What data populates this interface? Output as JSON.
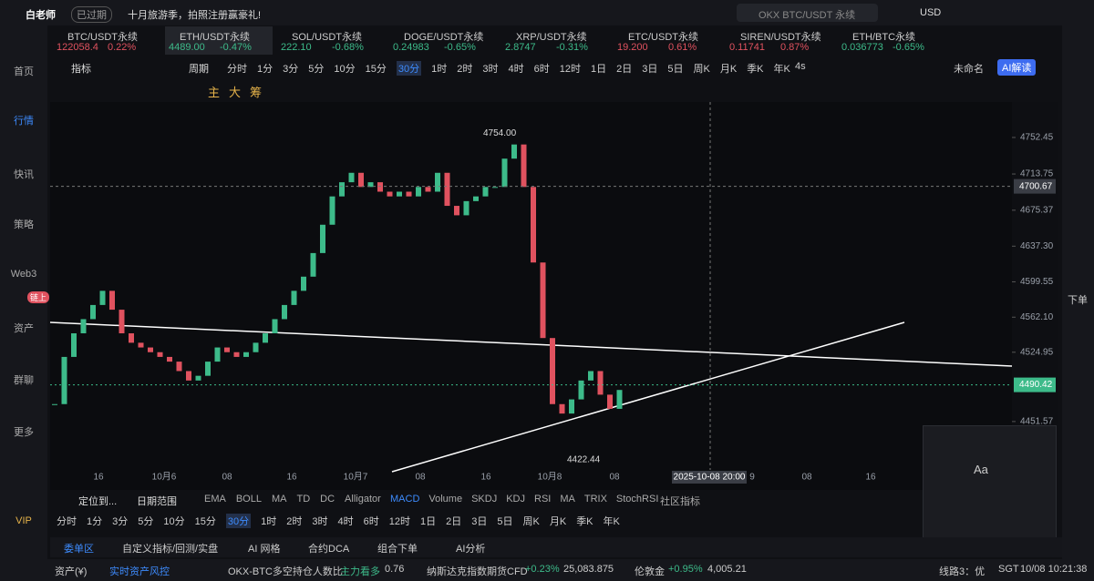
{
  "top_bar": {
    "brand": "白老师",
    "status": "已过期",
    "notice": "十月旅游季，拍照注册赢豪礼!",
    "search": "OKX BTC/USDT 永续",
    "currency": "USD"
  },
  "sidebar": [
    "首页",
    "行情",
    "快讯",
    "策略",
    "Web3",
    "资产",
    "群聊",
    "更多",
    "VIP"
  ],
  "sidebar_badge": "链上",
  "tickers": [
    {
      "name": "BTC/USDT永续",
      "price": "122058.4",
      "change": "0.22%"
    },
    {
      "name": "ETH/USDT永续",
      "price": "4489.00",
      "change": "-0.47%"
    },
    {
      "name": "SOL/USDT永续",
      "price": "222.10",
      "change": "-0.68%"
    },
    {
      "name": "DOGE/USDT永续",
      "price": "0.24983",
      "change": "-0.65%"
    },
    {
      "name": "XRP/USDT永续",
      "price": "2.8747",
      "change": "-0.31%"
    },
    {
      "name": "ETC/USDT永续",
      "price": "19.200",
      "change": "0.61%"
    },
    {
      "name": "SIREN/USDT永续",
      "price": "0.11741",
      "change": "0.87%"
    },
    {
      "name": "ETH/BTC永续",
      "price": "0.036773",
      "change": "-0.65%"
    }
  ],
  "toolbar": {
    "indicator": "指标",
    "period": "周期",
    "periods": [
      "分时",
      "1分",
      "3分",
      "5分",
      "10分",
      "15分",
      "30分",
      "1时",
      "2时",
      "3时",
      "4时",
      "6时",
      "12时",
      "1日",
      "2日",
      "3日",
      "5日",
      "周K",
      "月K",
      "季K",
      "年K"
    ],
    "active": "30分",
    "refresh": "4s",
    "layout": "未命名",
    "ai": "AI解读"
  },
  "draw_tools": [
    "主",
    "大",
    "筹"
  ],
  "price_chart": {
    "ylim": [
      4382,
      4790
    ],
    "yticks": [
      4752.45,
      4713.75,
      4675.37,
      {
        "value": 4637.3,
        "label": "4637.30"
      },
      4599.55,
      {
        "value": 4562.1,
        "label": "4562.10"
      },
      4524.95,
      4451.57
    ],
    "closes": [
      4470,
      4520,
      4545,
      4560,
      4575,
      4590,
      4570,
      4545,
      4535,
      4530,
      4525,
      4520,
      4515,
      4505,
      4495,
      4500,
      4515,
      4530,
      4525,
      4520,
      4525,
      4535,
      4545,
      4560,
      4575,
      4590,
      4605,
      4630,
      4660,
      4690,
      4705,
      4715,
      4700,
      4705,
      4695,
      4690,
      4695,
      4690,
      4700,
      4695,
      4715,
      4680,
      4670,
      4685,
      4690,
      4700,
      4700,
      4730,
      4745,
      4700,
      4620,
      4540,
      4470,
      4460,
      4475,
      4495,
      4505,
      4480,
      4465,
      4485
    ],
    "up_color": "#3dbb8a",
    "down_color": "#e0525f",
    "current_price": 4490.42,
    "crosshair_price": 4700.67,
    "high": {
      "value": 4754,
      "label": "4754.00"
    },
    "low": 4422.44,
    "x_labels": [
      "16",
      "10月6",
      "08",
      "16",
      "10月7",
      "08",
      "16",
      "10月8",
      "08",
      "2025-10-08 20:00",
      "9",
      "08",
      "16"
    ]
  },
  "indicator_bar": {
    "locate": "定位到...",
    "range": "日期范围",
    "main": [
      "EMA",
      "BOLL",
      "MA",
      "TD",
      "DC",
      "Alligator"
    ],
    "sub": [
      "MACD",
      "Volume",
      "SKDJ",
      "KDJ",
      "RSI",
      "MA",
      "TRIX",
      "StochRSI"
    ],
    "community": "社区指标"
  },
  "draw_panel": {
    "text": "Aa"
  },
  "tabs": [
    "委单区",
    "自定义指标/回测/实盘",
    "AI 网格",
    "合约DCA",
    "组合下单",
    "AI分析"
  ],
  "status_bar": {
    "assets": "资产(¥)",
    "risk": "实时资产风控",
    "ratio": "OKX-BTC多空持仓人数比",
    "ratio_side": "主力看多",
    "ratio_value": "0.76",
    "nasdaq": "纳斯达克指数期货CFD",
    "nasdaq_change": "+0.23%",
    "nasdaq_value": "25,083.875",
    "gold": "伦敦金",
    "gold_change": "+0.95%",
    "gold_value": "4,005.21",
    "line": "线路3：优",
    "tz": "SGT",
    "time": "10/08 10:21:38"
  },
  "right_rail": "下单"
}
